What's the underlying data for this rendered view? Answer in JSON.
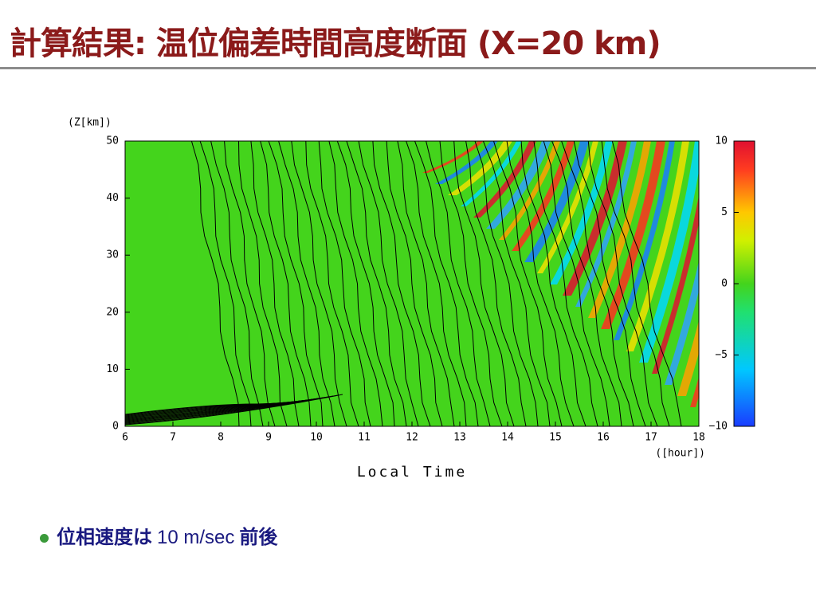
{
  "header": {
    "title": "計算結果: 温位偏差時間高度断面 (X=20 km)"
  },
  "figure": {
    "y_label": "(Z[km])",
    "x_label": "Local Time",
    "x_unit": "([hour])",
    "xlim": [
      6,
      18
    ],
    "xticks": [
      6,
      7,
      8,
      9,
      10,
      11,
      12,
      13,
      14,
      15,
      16,
      17,
      18
    ],
    "ylim": [
      0,
      50
    ],
    "yticks": [
      0,
      10,
      20,
      30,
      40,
      50
    ],
    "colorbar": {
      "lim": [
        -10,
        10
      ],
      "ticks": [
        {
          "value": -10,
          "label": "−10"
        },
        {
          "value": -5,
          "label": "−5"
        },
        0,
        5,
        10
      ]
    }
  },
  "bullets": [
    {
      "parts": [
        "位相速度は",
        "10 m/sec",
        "前後"
      ]
    }
  ]
}
